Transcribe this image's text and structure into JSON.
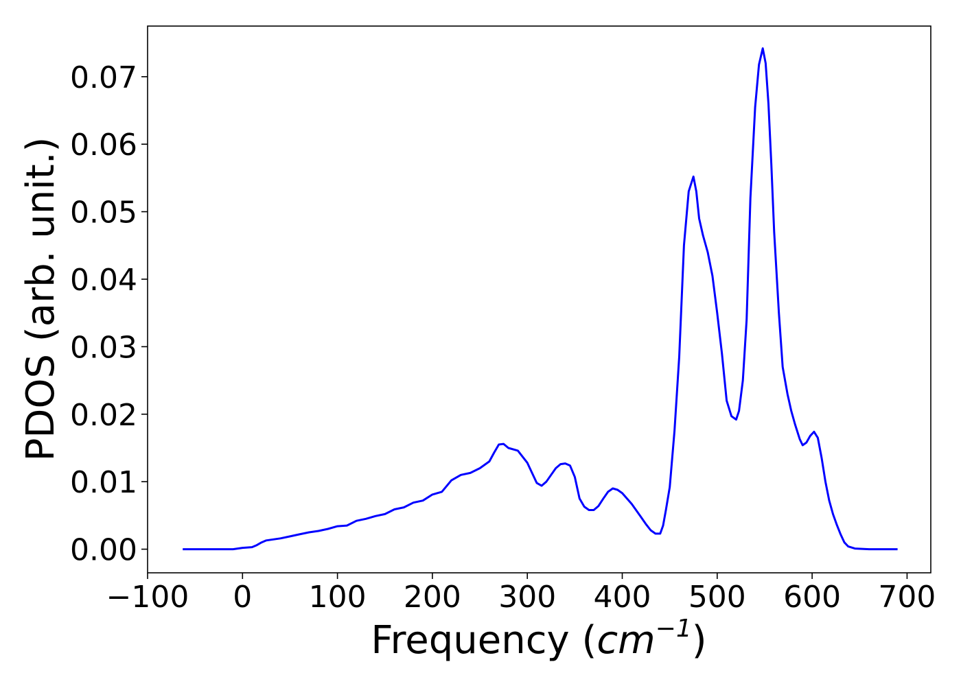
{
  "chart_data": {
    "type": "line",
    "title": "",
    "xlabel": "Frequency (",
    "xlabel_unit_base": "cm",
    "xlabel_unit_exp": "−1",
    "xlabel_close": ")",
    "ylabel": "PDOS (arb. unit.)",
    "xlim": [
      -100,
      725
    ],
    "ylim": [
      -0.0035,
      0.0775
    ],
    "xticks": [
      -100,
      0,
      100,
      200,
      300,
      400,
      500,
      600,
      700
    ],
    "xtick_labels": [
      "−100",
      "0",
      "100",
      "200",
      "300",
      "400",
      "500",
      "600",
      "700"
    ],
    "yticks": [
      0.0,
      0.01,
      0.02,
      0.03,
      0.04,
      0.05,
      0.06,
      0.07
    ],
    "ytick_labels": [
      "0.00",
      "0.01",
      "0.02",
      "0.03",
      "0.04",
      "0.05",
      "0.06",
      "0.07"
    ],
    "grid": false,
    "line_color": "#0000ff",
    "series": [
      {
        "x": [
          -63,
          -40,
          -20,
          -10,
          0,
          10,
          15,
          20,
          25,
          30,
          40,
          50,
          60,
          70,
          80,
          90,
          100,
          110,
          120,
          130,
          140,
          150,
          160,
          170,
          180,
          190,
          200,
          210,
          220,
          230,
          240,
          250,
          260,
          265,
          270,
          275,
          280,
          290,
          300,
          305,
          310,
          315,
          320,
          325,
          330,
          335,
          340,
          345,
          350,
          355,
          360,
          365,
          370,
          375,
          380,
          385,
          390,
          395,
          400,
          410,
          420,
          425,
          430,
          435,
          440,
          443,
          446,
          450,
          455,
          460,
          465,
          470,
          475,
          478,
          481,
          485,
          490,
          495,
          500,
          505,
          510,
          515,
          520,
          523,
          527,
          531,
          535,
          540,
          544,
          548,
          551,
          554,
          557,
          560,
          565,
          569,
          574,
          578,
          582,
          587,
          590,
          594,
          598,
          602,
          606,
          610,
          614,
          618,
          622,
          626,
          630,
          634,
          638,
          645,
          660,
          690
        ],
        "y": [
          0,
          0,
          0,
          0,
          0.0002,
          0.0003,
          0.0006,
          0.001,
          0.0013,
          0.0014,
          0.0016,
          0.0019,
          0.0022,
          0.0025,
          0.0027,
          0.003,
          0.0034,
          0.0035,
          0.0042,
          0.0045,
          0.0049,
          0.0052,
          0.0059,
          0.0062,
          0.0069,
          0.0072,
          0.0081,
          0.0085,
          0.0102,
          0.011,
          0.0113,
          0.012,
          0.013,
          0.0143,
          0.0155,
          0.0156,
          0.015,
          0.0146,
          0.0128,
          0.0113,
          0.0098,
          0.0094,
          0.01,
          0.011,
          0.012,
          0.0126,
          0.0127,
          0.0124,
          0.0107,
          0.0075,
          0.0063,
          0.0058,
          0.0058,
          0.0064,
          0.0075,
          0.0085,
          0.009,
          0.0088,
          0.0083,
          0.0067,
          0.0047,
          0.0037,
          0.0028,
          0.0023,
          0.0023,
          0.0035,
          0.0058,
          0.0092,
          0.0175,
          0.0285,
          0.045,
          0.053,
          0.0552,
          0.053,
          0.049,
          0.0465,
          0.044,
          0.0405,
          0.035,
          0.029,
          0.022,
          0.0197,
          0.0192,
          0.0205,
          0.025,
          0.034,
          0.052,
          0.0655,
          0.0718,
          0.0742,
          0.072,
          0.066,
          0.057,
          0.047,
          0.035,
          0.027,
          0.023,
          0.0205,
          0.0185,
          0.0163,
          0.0154,
          0.0158,
          0.0168,
          0.0174,
          0.0165,
          0.0135,
          0.01,
          0.0072,
          0.0052,
          0.0036,
          0.0022,
          0.001,
          0.0004,
          0.0001,
          0,
          0
        ]
      }
    ]
  }
}
